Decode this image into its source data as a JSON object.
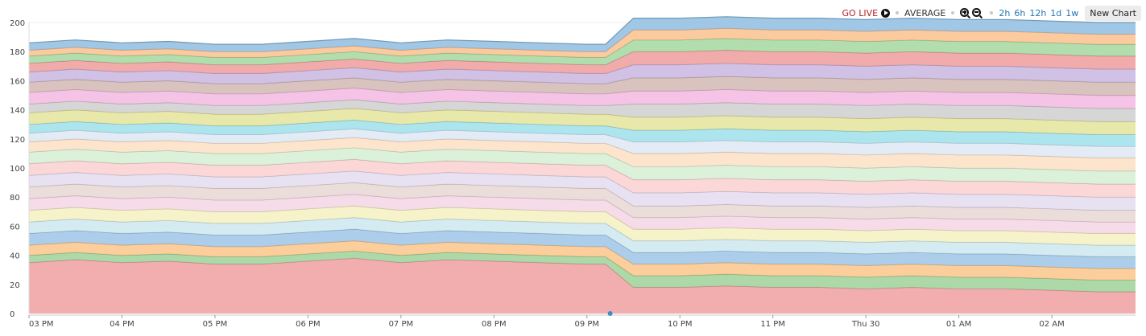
{
  "toolbar": {
    "go_live": "GO LIVE",
    "average": "AVERAGE",
    "ranges": [
      "2h",
      "6h",
      "12h",
      "1d",
      "1w"
    ],
    "new_chart": "New Chart",
    "icons": [
      "play-icon",
      "zoom-in-icon",
      "zoom-out-icon"
    ]
  },
  "chart_data": {
    "type": "area",
    "stacked": true,
    "title": "",
    "xlabel": "",
    "ylabel": "",
    "ylim": [
      0,
      200
    ],
    "yticks": [
      0,
      20,
      40,
      60,
      80,
      100,
      120,
      140,
      160,
      180,
      200
    ],
    "grid": "horizontal",
    "x_unit": "hours since 03 PM",
    "x_ticks": [
      {
        "x": 0,
        "label": "03 PM"
      },
      {
        "x": 1,
        "label": "04 PM"
      },
      {
        "x": 2,
        "label": "05 PM"
      },
      {
        "x": 3,
        "label": "06 PM"
      },
      {
        "x": 4,
        "label": "07 PM"
      },
      {
        "x": 5,
        "label": "08 PM"
      },
      {
        "x": 6,
        "label": "09 PM"
      },
      {
        "x": 7,
        "label": "10 PM"
      },
      {
        "x": 8,
        "label": "11 PM"
      },
      {
        "x": 9,
        "label": "Thu 30"
      },
      {
        "x": 10,
        "label": "01 AM"
      },
      {
        "x": 11,
        "label": "02 AM"
      }
    ],
    "x": [
      0,
      0.5,
      1,
      1.5,
      2,
      2.5,
      3,
      3.5,
      4,
      4.5,
      5,
      5.5,
      6,
      6.2,
      6.5,
      7,
      7.5,
      8,
      8.5,
      9,
      9.5,
      10,
      10.5,
      11,
      11.5,
      11.9
    ],
    "series": [
      {
        "color": "#f0a0a0",
        "values": [
          35,
          37,
          35,
          36,
          34,
          34,
          36,
          38,
          35,
          37,
          36,
          35,
          34,
          34,
          18,
          18,
          19,
          18,
          18,
          17,
          18,
          17,
          17,
          16,
          15,
          15
        ]
      },
      {
        "color": "#9fd29a",
        "values": [
          5,
          5,
          5,
          5,
          5,
          5,
          5,
          5,
          5,
          5,
          5,
          5,
          5,
          5,
          8,
          8,
          8,
          8,
          8,
          8,
          8,
          8,
          8,
          8,
          8,
          8
        ]
      },
      {
        "color": "#fcc58a",
        "values": [
          7,
          7,
          7,
          7,
          7,
          7,
          7,
          7,
          7,
          7,
          7,
          7,
          7,
          7,
          8,
          8,
          8,
          8,
          8,
          8,
          8,
          8,
          8,
          8,
          8,
          8
        ]
      },
      {
        "color": "#9fc6e6",
        "values": [
          8,
          8,
          8,
          8,
          8,
          8,
          8,
          8,
          8,
          8,
          8,
          8,
          8,
          8,
          8,
          8,
          8,
          8,
          8,
          8,
          8,
          8,
          8,
          8,
          8,
          8
        ]
      },
      {
        "color": "#cde8f0",
        "values": [
          8,
          8,
          8,
          8,
          8,
          8,
          8,
          8,
          8,
          8,
          8,
          8,
          8,
          8,
          8,
          8,
          8,
          8,
          8,
          8,
          8,
          8,
          8,
          8,
          8,
          8
        ]
      },
      {
        "color": "#f5f0c0",
        "values": [
          8,
          8,
          8,
          8,
          8,
          8,
          8,
          8,
          8,
          8,
          8,
          8,
          8,
          8,
          8,
          8,
          8,
          8,
          8,
          8,
          8,
          8,
          8,
          8,
          8,
          8
        ]
      },
      {
        "color": "#f5d5e5",
        "values": [
          8,
          8,
          8,
          8,
          8,
          8,
          8,
          8,
          8,
          8,
          8,
          8,
          8,
          8,
          8,
          8,
          8,
          8,
          8,
          8,
          8,
          8,
          8,
          8,
          8,
          8
        ]
      },
      {
        "color": "#e8d8d4",
        "values": [
          8,
          8,
          8,
          8,
          8,
          8,
          8,
          8,
          8,
          8,
          8,
          8,
          8,
          8,
          8,
          8,
          8,
          8,
          8,
          8,
          8,
          8,
          8,
          8,
          8,
          8
        ]
      },
      {
        "color": "#e4dcf0",
        "values": [
          8,
          8,
          8,
          8,
          8,
          8,
          8,
          8,
          8,
          8,
          8,
          8,
          8,
          8,
          9,
          9,
          9,
          9,
          9,
          9,
          9,
          9,
          9,
          9,
          9,
          9
        ]
      },
      {
        "color": "#fad0d0",
        "values": [
          8,
          8,
          8,
          8,
          8,
          8,
          8,
          8,
          8,
          8,
          8,
          8,
          8,
          8,
          9,
          9,
          9,
          9,
          9,
          9,
          9,
          9,
          9,
          9,
          9,
          9
        ]
      },
      {
        "color": "#d6efd2",
        "values": [
          8,
          8,
          8,
          8,
          8,
          8,
          8,
          8,
          8,
          8,
          8,
          8,
          8,
          8,
          9,
          9,
          9,
          9,
          9,
          9,
          9,
          9,
          9,
          9,
          9,
          9
        ]
      },
      {
        "color": "#fde0c4",
        "values": [
          7,
          7,
          7,
          7,
          7,
          7,
          7,
          7,
          7,
          7,
          7,
          7,
          7,
          7,
          9,
          9,
          9,
          9,
          9,
          9,
          9,
          9,
          9,
          9,
          9,
          9
        ]
      },
      {
        "color": "#dde8f5",
        "values": [
          6,
          6,
          6,
          6,
          6,
          6,
          6,
          6,
          6,
          6,
          6,
          6,
          6,
          6,
          8,
          8,
          8,
          8,
          8,
          8,
          8,
          8,
          8,
          8,
          8,
          8
        ]
      },
      {
        "color": "#9ee0ea",
        "values": [
          6,
          6,
          6,
          6,
          6,
          6,
          6,
          6,
          6,
          6,
          6,
          6,
          6,
          6,
          8,
          8,
          8,
          8,
          8,
          8,
          8,
          8,
          8,
          8,
          8,
          8
        ]
      },
      {
        "color": "#e3e49a",
        "values": [
          8,
          8,
          8,
          8,
          8,
          8,
          8,
          8,
          8,
          8,
          8,
          8,
          8,
          8,
          9,
          9,
          9,
          9,
          9,
          9,
          9,
          9,
          9,
          9,
          9,
          9
        ]
      },
      {
        "color": "#cfcfcf",
        "values": [
          6,
          6,
          6,
          6,
          6,
          6,
          6,
          6,
          6,
          6,
          6,
          6,
          6,
          6,
          9,
          9,
          9,
          9,
          9,
          9,
          9,
          9,
          9,
          9,
          9,
          9
        ]
      },
      {
        "color": "#f2b9e0",
        "values": [
          8,
          8,
          8,
          8,
          8,
          8,
          8,
          8,
          8,
          8,
          8,
          8,
          8,
          8,
          9,
          9,
          9,
          9,
          9,
          9,
          9,
          9,
          9,
          9,
          9,
          9
        ]
      },
      {
        "color": "#d2b8b4",
        "values": [
          7,
          7,
          7,
          7,
          7,
          7,
          7,
          7,
          7,
          7,
          7,
          7,
          7,
          7,
          9,
          9,
          9,
          9,
          9,
          9,
          9,
          9,
          9,
          9,
          9,
          9
        ]
      },
      {
        "color": "#c9b6e0",
        "values": [
          7,
          7,
          7,
          7,
          7,
          7,
          7,
          7,
          7,
          7,
          7,
          7,
          7,
          7,
          9,
          9,
          9,
          9,
          9,
          9,
          9,
          9,
          9,
          9,
          9,
          9
        ]
      },
      {
        "color": "#ef9c9c",
        "values": [
          6,
          6,
          6,
          6,
          6,
          6,
          6,
          6,
          6,
          6,
          6,
          6,
          6,
          6,
          9,
          9,
          9,
          9,
          9,
          9,
          9,
          9,
          9,
          9,
          9,
          9
        ]
      },
      {
        "color": "#a5d89f",
        "values": [
          5,
          5,
          5,
          5,
          5,
          5,
          5,
          5,
          5,
          5,
          5,
          5,
          5,
          5,
          8,
          8,
          8,
          8,
          8,
          8,
          8,
          8,
          8,
          8,
          8,
          8
        ]
      },
      {
        "color": "#fcc18e",
        "values": [
          4,
          4,
          4,
          4,
          4,
          4,
          4,
          4,
          4,
          4,
          4,
          4,
          4,
          4,
          7,
          7,
          7,
          7,
          7,
          7,
          7,
          7,
          7,
          7,
          7,
          7
        ]
      },
      {
        "color": "#8fbde0",
        "values": [
          5,
          5,
          5,
          5,
          5,
          5,
          5,
          5,
          5,
          5,
          5,
          5,
          5,
          5,
          8,
          8,
          8,
          8,
          8,
          8,
          8,
          8,
          8,
          8,
          8,
          8
        ]
      }
    ],
    "marker": {
      "x": 6.25,
      "y": 0,
      "color": "#3a8fc8"
    }
  }
}
